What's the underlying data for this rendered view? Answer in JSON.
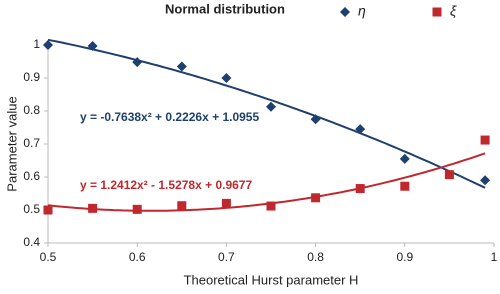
{
  "chart_data": {
    "type": "scatter",
    "title": "Normal distribution",
    "xlabel": "Theoretical Hurst parameter H",
    "ylabel": "Parameter value",
    "xlim": [
      0.5,
      1
    ],
    "xticks": [
      0.5,
      0.6,
      0.7,
      0.8,
      0.9,
      1
    ],
    "ylim": [
      0.4,
      1
    ],
    "yticks": [
      0.4,
      0.5,
      0.6,
      0.7,
      0.8,
      0.9,
      1
    ],
    "series": [
      {
        "name": "η",
        "color": "#1f3f6e",
        "marker": "diamond",
        "x": [
          0.5,
          0.55,
          0.6,
          0.65,
          0.7,
          0.75,
          0.8,
          0.85,
          0.9,
          0.99
        ],
        "values": [
          1.0,
          0.997,
          0.948,
          0.935,
          0.9,
          0.813,
          0.775,
          0.745,
          0.655,
          0.59
        ],
        "trendline": {
          "label": "y = -0.7638x² + 0.2226x + 1.0955",
          "coefficients": [
            -0.7638,
            0.2226,
            1.0955
          ]
        }
      },
      {
        "name": "ξ",
        "color": "#c0282d",
        "marker": "square",
        "x": [
          0.5,
          0.55,
          0.6,
          0.65,
          0.7,
          0.75,
          0.8,
          0.85,
          0.9,
          0.95,
          0.99
        ],
        "values": [
          0.5,
          0.505,
          0.502,
          0.513,
          0.52,
          0.512,
          0.537,
          0.565,
          0.572,
          0.607,
          0.712
        ],
        "trendline": {
          "label": "y = 1.2412x² - 1.5278x + 0.9677",
          "coefficients": [
            1.2412,
            -1.5278,
            0.9677
          ]
        }
      }
    ]
  }
}
